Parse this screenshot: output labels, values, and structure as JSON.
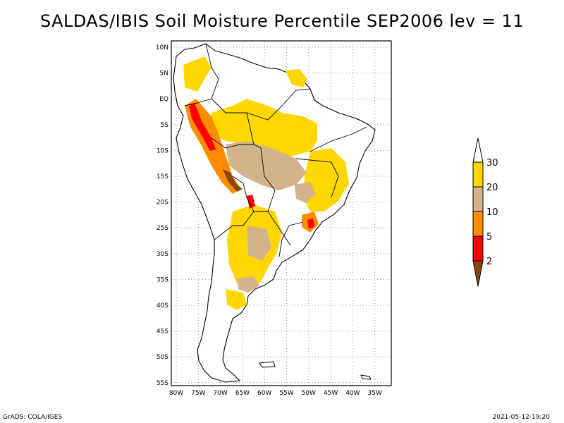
{
  "title": "SALDAS/IBIS Soil Moisture Percentile SEP2006 lev = 11",
  "map": {
    "lat_labels": [
      "10N",
      "5N",
      "EQ",
      "5S",
      "10S",
      "15S",
      "20S",
      "25S",
      "30S",
      "35S",
      "40S",
      "45S",
      "50S",
      "55S"
    ],
    "lon_labels": [
      "80W",
      "75W",
      "70W",
      "65W",
      "60W",
      "55W",
      "50W",
      "45W",
      "40W",
      "35W"
    ],
    "lon_range": [
      -81,
      -33
    ],
    "lat_range": [
      -56,
      12
    ],
    "grid": "dotted",
    "region": "South America"
  },
  "legend": {
    "labels": [
      "2",
      "5",
      "10",
      "20",
      "30"
    ],
    "bins": [
      {
        "range": "<2",
        "color": "#8b4513"
      },
      {
        "range": "2-5",
        "color": "#ff0000"
      },
      {
        "range": "5-10",
        "color": "#ff8c00"
      },
      {
        "range": "10-20",
        "color": "#d2b48c"
      },
      {
        "range": "20-30",
        "color": "#ffd700"
      },
      {
        "range": ">30",
        "color": "#ffffff"
      }
    ]
  },
  "footer": {
    "left": "GrADS: COLA/IGES",
    "right": "2021-05-12-19:20"
  }
}
